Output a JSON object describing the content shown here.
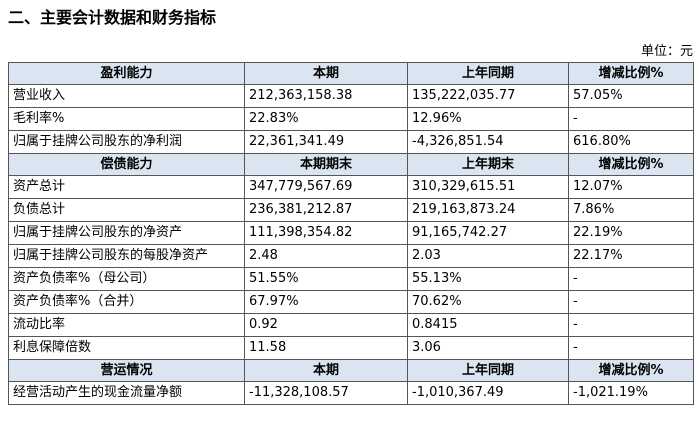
{
  "title": "二、主要会计数据和财务指标",
  "unit": "单位：元",
  "sections": [
    {
      "header": [
        "盈利能力",
        "本期",
        "上年同期",
        "增减比例%"
      ],
      "rows": [
        [
          "营业收入",
          "212,363,158.38",
          "135,222,035.77",
          "57.05%"
        ],
        [
          "毛利率%",
          "22.83%",
          "12.96%",
          "-"
        ],
        [
          "归属于挂牌公司股东的净利润",
          "22,361,341.49",
          "-4,326,851.54",
          "616.80%"
        ]
      ]
    },
    {
      "header": [
        "偿债能力",
        "本期期末",
        "上年期末",
        "增减比例%"
      ],
      "rows": [
        [
          "资产总计",
          "347,779,567.69",
          "310,329,615.51",
          "12.07%"
        ],
        [
          "负债总计",
          "236,381,212.87",
          "219,163,873.24",
          "7.86%"
        ],
        [
          "归属于挂牌公司股东的净资产",
          "111,398,354.82",
          "91,165,742.27",
          "22.19%"
        ],
        [
          "归属于挂牌公司股东的每股净资产",
          "2.48",
          "2.03",
          "22.17%"
        ],
        [
          "资产负债率%（母公司）",
          "51.55%",
          "55.13%",
          "-"
        ],
        [
          "资产负债率%（合并）",
          "67.97%",
          "70.62%",
          "-"
        ],
        [
          "流动比率",
          "0.92",
          "0.8415",
          "-"
        ],
        [
          "利息保障倍数",
          "11.58",
          "3.06",
          "-"
        ]
      ]
    },
    {
      "header": [
        "营运情况",
        "本期",
        "上年同期",
        "增减比例%"
      ],
      "rows": [
        [
          "经营活动产生的现金流量净额",
          "-11,328,108.57",
          "-1,010,367.49",
          "-1,021.19%"
        ]
      ]
    }
  ]
}
